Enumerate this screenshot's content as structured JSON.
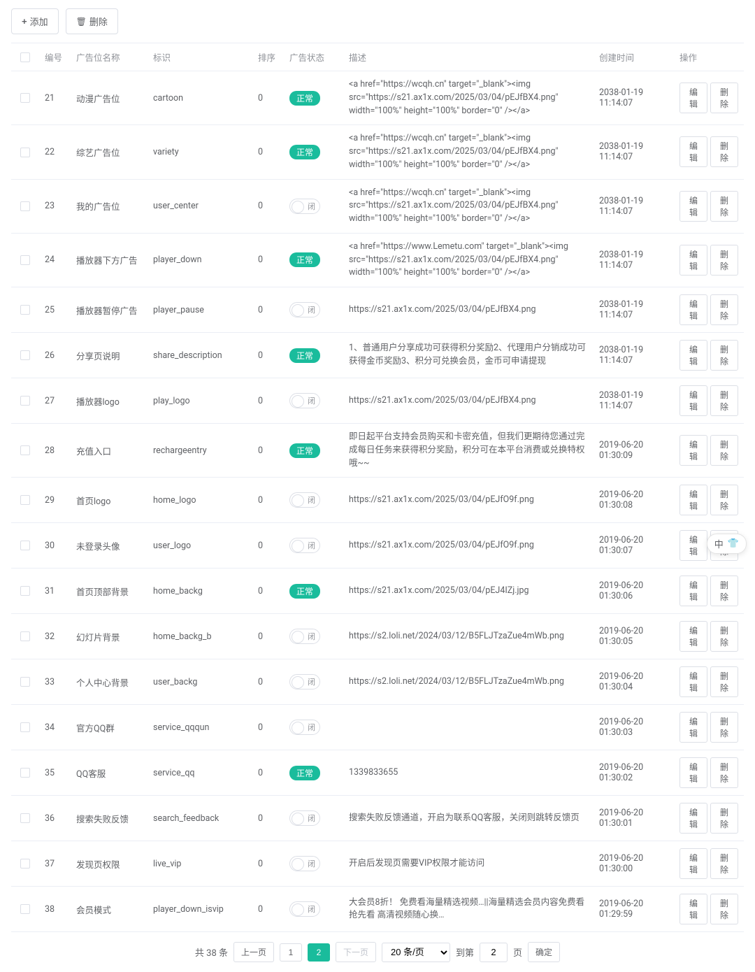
{
  "toolbar": {
    "add_label": "添加",
    "delete_label": "删除"
  },
  "columns": {
    "id": "编号",
    "name": "广告位名称",
    "slug": "标识",
    "order": "排序",
    "status": "广告状态",
    "desc": "描述",
    "time": "创建时间",
    "op": "操作"
  },
  "status_labels": {
    "normal": "正常",
    "off": "闭"
  },
  "op_labels": {
    "edit": "编辑",
    "delete": "删除"
  },
  "rows": [
    {
      "id": "21",
      "name": "动漫广告位",
      "slug": "cartoon",
      "order": "0",
      "status": "normal",
      "desc": "<a href=\"https://wcqh.cn\" target=\"_blank\"><img src=\"https://s21.ax1x.com/2025/03/04/pEJfBX4.png\" width=\"100%\" height=\"100%\" border=\"0\" /></a>",
      "time": "2038-01-19 11:14:07"
    },
    {
      "id": "22",
      "name": "综艺广告位",
      "slug": "variety",
      "order": "0",
      "status": "normal",
      "desc": "<a href=\"https://wcqh.cn\" target=\"_blank\"><img src=\"https://s21.ax1x.com/2025/03/04/pEJfBX4.png\" width=\"100%\" height=\"100%\" border=\"0\" /></a>",
      "time": "2038-01-19 11:14:07"
    },
    {
      "id": "23",
      "name": "我的广告位",
      "slug": "user_center",
      "order": "0",
      "status": "off",
      "desc": "<a href=\"https://wcqh.cn\" target=\"_blank\"><img src=\"https://s21.ax1x.com/2025/03/04/pEJfBX4.png\" width=\"100%\" height=\"100%\" border=\"0\" /></a>",
      "time": "2038-01-19 11:14:07"
    },
    {
      "id": "24",
      "name": "播放器下方广告",
      "slug": "player_down",
      "order": "0",
      "status": "normal",
      "desc": "<a href=\"https://www.Lemetu.com\" target=\"_blank\"><img src=\"https://s21.ax1x.com/2025/03/04/pEJfBX4.png\" width=\"100%\" height=\"100%\" border=\"0\" /></a>",
      "time": "2038-01-19 11:14:07"
    },
    {
      "id": "25",
      "name": "播放器暂停广告",
      "slug": "player_pause",
      "order": "0",
      "status": "off",
      "desc": "https://s21.ax1x.com/2025/03/04/pEJfBX4.png",
      "time": "2038-01-19 11:14:07"
    },
    {
      "id": "26",
      "name": "分享页说明",
      "slug": "share_description",
      "order": "0",
      "status": "normal",
      "desc": "1、普通用户分享成功可获得积分奖励2、代理用户分销成功可获得金币奖励3、积分可兑换会员，金币可申请提现",
      "time": "2038-01-19 11:14:07"
    },
    {
      "id": "27",
      "name": "播放器logo",
      "slug": "play_logo",
      "order": "0",
      "status": "off",
      "desc": "https://s21.ax1x.com/2025/03/04/pEJfBX4.png",
      "time": "2038-01-19 11:14:07"
    },
    {
      "id": "28",
      "name": "充值入口",
      "slug": "rechargeentry",
      "order": "0",
      "status": "normal",
      "desc": "即日起平台支持会员购买和卡密充值，但我们更期待您通过完成每日任务来获得积分奖励，积分可在本平台消费或兑换特权哦~~",
      "time": "2019-06-20 01:30:09"
    },
    {
      "id": "29",
      "name": "首页logo",
      "slug": "home_logo",
      "order": "0",
      "status": "off",
      "desc": "https://s21.ax1x.com/2025/03/04/pEJfO9f.png",
      "time": "2019-06-20 01:30:08"
    },
    {
      "id": "30",
      "name": "未登录头像",
      "slug": "user_logo",
      "order": "0",
      "status": "off",
      "desc": "https://s21.ax1x.com/2025/03/04/pEJfO9f.png",
      "time": "2019-06-20 01:30:07"
    },
    {
      "id": "31",
      "name": "首页顶部背景",
      "slug": "home_backg",
      "order": "0",
      "status": "normal",
      "desc": "https://s21.ax1x.com/2025/03/04/pEJ4IZj.jpg",
      "time": "2019-06-20 01:30:06"
    },
    {
      "id": "32",
      "name": "幻灯片背景",
      "slug": "home_backg_b",
      "order": "0",
      "status": "off",
      "desc": "https://s2.loli.net/2024/03/12/B5FLJTzaZue4mWb.png",
      "time": "2019-06-20 01:30:05"
    },
    {
      "id": "33",
      "name": "个人中心背景",
      "slug": "user_backg",
      "order": "0",
      "status": "off",
      "desc": "https://s2.loli.net/2024/03/12/B5FLJTzaZue4mWb.png",
      "time": "2019-06-20 01:30:04"
    },
    {
      "id": "34",
      "name": "官方QQ群",
      "slug": "service_qqqun",
      "order": "0",
      "status": "off",
      "desc": "",
      "time": "2019-06-20 01:30:03"
    },
    {
      "id": "35",
      "name": "QQ客服",
      "slug": "service_qq",
      "order": "0",
      "status": "normal",
      "desc": "1339833655",
      "time": "2019-06-20 01:30:02"
    },
    {
      "id": "36",
      "name": "搜索失败反馈",
      "slug": "search_feedback",
      "order": "0",
      "status": "off",
      "desc": "搜索失败反馈通道，开启为联系QQ客服，关闭则跳转反馈页",
      "time": "2019-06-20 01:30:01"
    },
    {
      "id": "37",
      "name": "发现页权限",
      "slug": "live_vip",
      "order": "0",
      "status": "off",
      "desc": "开启后发现页需要VIP权限才能访问",
      "time": "2019-06-20 01:30:00"
    },
    {
      "id": "38",
      "name": "会员模式",
      "slug": "player_down_isvip",
      "order": "0",
      "status": "off",
      "desc": "大会员8折！ 免费看海量精选视频…||海量精选会员内容免费看  抢先看  高清视频随心换…",
      "time": "2019-06-20 01:29:59"
    }
  ],
  "pagination": {
    "total_text": "共 38 条",
    "prev": "上一页",
    "next": "下一页",
    "page1": "1",
    "page2": "2",
    "per_page": "20 条/页",
    "goto": "到第",
    "goto_value": "2",
    "page_suffix": "页",
    "confirm": "确定"
  },
  "float": {
    "text": "中"
  },
  "colors": {
    "accent": "#1abc9c",
    "border": "#ebeef5",
    "text": "#606266",
    "muted": "#909399"
  }
}
